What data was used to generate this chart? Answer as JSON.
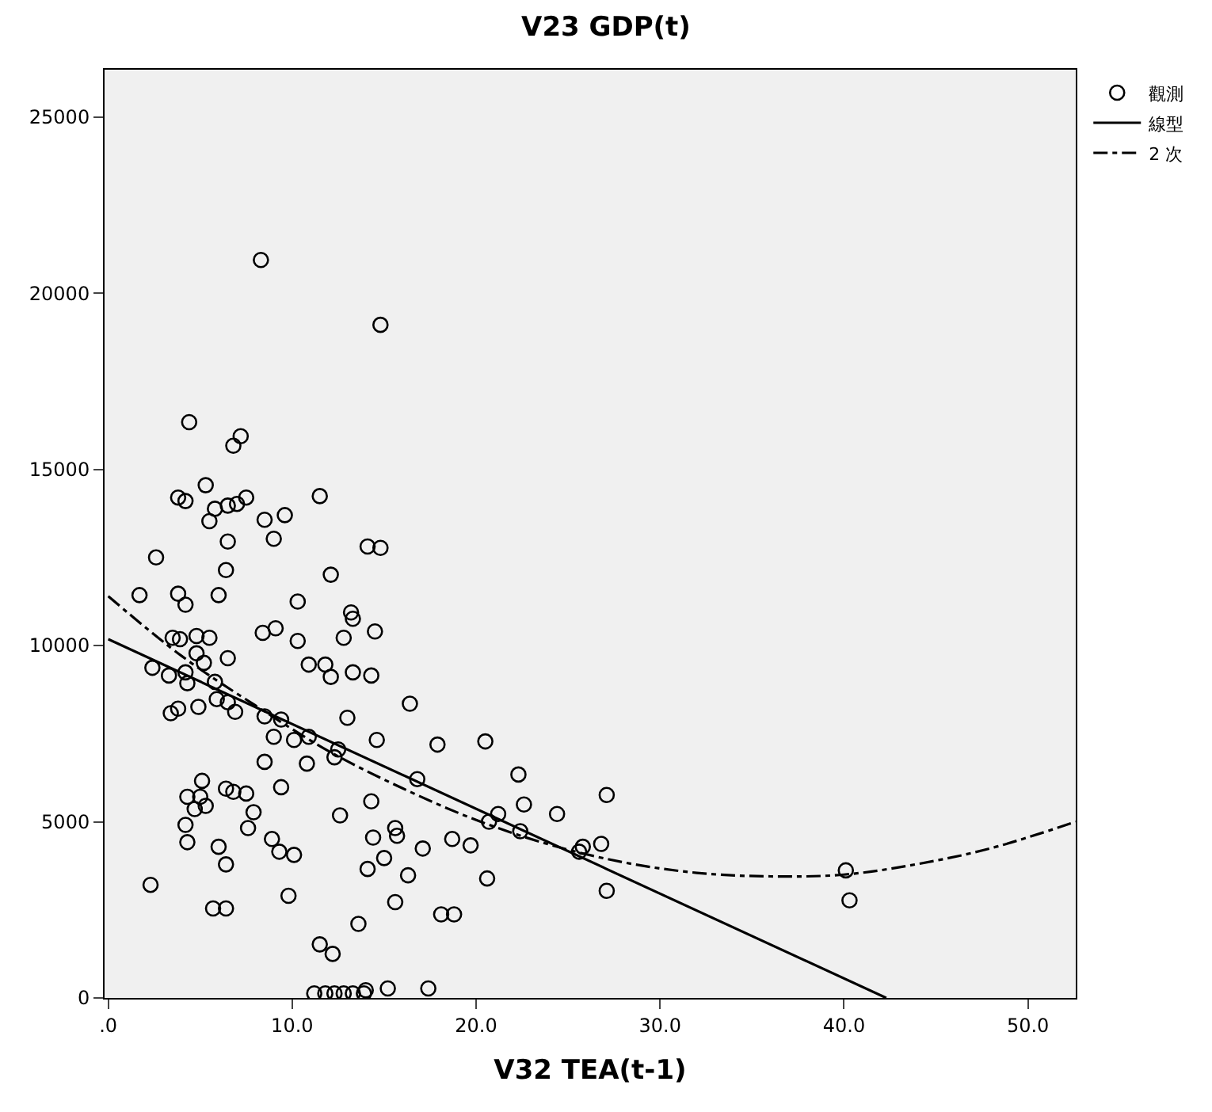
{
  "chart_data": {
    "type": "scatter",
    "title": "V23 GDP(t)",
    "xlabel": "V32 TEA(t-1)",
    "xlim": [
      -0.2,
      52.6
    ],
    "ylim": [
      0,
      26340
    ],
    "xticks": [
      {
        "value": 0,
        "label": ".0"
      },
      {
        "value": 10,
        "label": "10.0"
      },
      {
        "value": 20,
        "label": "20.0"
      },
      {
        "value": 30,
        "label": "30.0"
      },
      {
        "value": 40,
        "label": "40.0"
      },
      {
        "value": 50,
        "label": "50.0"
      }
    ],
    "yticks": [
      0,
      5000,
      10000,
      15000,
      20000,
      25000
    ],
    "grid": false,
    "legend": "top right",
    "series": [
      {
        "name": "觀測",
        "marker": "circle",
        "color": "#000000",
        "x": [
          8.3,
          14.8,
          4.4,
          7.2,
          6.8,
          3.8,
          4.2,
          5.3,
          5.8,
          5.5,
          6.5,
          7.0,
          7.5,
          8.5,
          9.6,
          9.0,
          6.5,
          11.5,
          2.6,
          6.4,
          14.1,
          14.8,
          12.1,
          1.7,
          3.8,
          4.2,
          6.0,
          10.3,
          13.2,
          13.3,
          8.4,
          9.1,
          10.3,
          12.8,
          14.5,
          3.5,
          3.9,
          4.8,
          5.5,
          4.8,
          5.2,
          6.5,
          2.4,
          3.3,
          4.2,
          4.3,
          5.8,
          10.9,
          11.8,
          12.1,
          13.3,
          14.3,
          5.9,
          6.5,
          6.9,
          3.4,
          3.8,
          4.9,
          8.5,
          9.4,
          13.0,
          9.0,
          10.1,
          10.9,
          12.5,
          12.3,
          14.6,
          8.5,
          10.8,
          5.1,
          4.3,
          5.0,
          4.7,
          5.3,
          6.4,
          6.8,
          7.5,
          9.4,
          7.9,
          7.6,
          4.2,
          4.3,
          6.0,
          6.4,
          8.9,
          9.3,
          10.1,
          12.6,
          14.3,
          14.4,
          14.1,
          2.3,
          9.8,
          5.7,
          6.4,
          13.6,
          11.5,
          12.2,
          11.2,
          11.8,
          12.3,
          12.8,
          13.3,
          13.9,
          14.0,
          16.4,
          17.9,
          20.5,
          16.8,
          22.3,
          22.6,
          24.4,
          27.1,
          21.2,
          20.7,
          22.4,
          15.6,
          15.7,
          15.0,
          17.1,
          18.7,
          19.7,
          16.3,
          20.6,
          25.6,
          25.8,
          26.8,
          27.1,
          15.6,
          18.1,
          18.8,
          15.2,
          17.4,
          40.1,
          40.3
        ],
        "values": [
          20940,
          19100,
          16340,
          15940,
          15670,
          14200,
          14100,
          14550,
          13880,
          13530,
          13970,
          14020,
          14200,
          13570,
          13700,
          13030,
          12950,
          14240,
          12500,
          12140,
          12810,
          12770,
          12010,
          11430,
          11470,
          11160,
          11430,
          11250,
          10940,
          10760,
          10360,
          10490,
          10130,
          10220,
          10400,
          10220,
          10180,
          10270,
          10220,
          9780,
          9510,
          9640,
          9370,
          9150,
          9240,
          8930,
          8970,
          9460,
          9460,
          9110,
          9240,
          9150,
          8480,
          8390,
          8120,
          8080,
          8210,
          8260,
          7990,
          7900,
          7950,
          7410,
          7320,
          7410,
          7050,
          6830,
          7320,
          6700,
          6650,
          6160,
          5710,
          5710,
          5360,
          5450,
          5940,
          5850,
          5800,
          5980,
          5270,
          4820,
          4910,
          4420,
          4290,
          3790,
          4510,
          4150,
          4060,
          5180,
          5580,
          4550,
          3660,
          3210,
          2900,
          2540,
          2540,
          2100,
          1520,
          1250,
          130,
          130,
          130,
          130,
          130,
          130,
          220,
          8350,
          7190,
          7280,
          6210,
          6340,
          5490,
          5220,
          5760,
          5220,
          5000,
          4730,
          4820,
          4600,
          3970,
          4240,
          4510,
          4330,
          3480,
          3390,
          4150,
          4290,
          4370,
          3040,
          2720,
          2370,
          2370,
          270,
          270,
          3620,
          2770
        ]
      },
      {
        "name": "線型",
        "type": "line",
        "line_style": "solid",
        "color": "#000000",
        "x": [
          0,
          42.3
        ],
        "values": [
          10180,
          0
        ]
      },
      {
        "name": "2 次",
        "type": "line",
        "line_style": "dashdot",
        "color": "#000000",
        "x": [
          0,
          4,
          8,
          12,
          16,
          20,
          24,
          28,
          32,
          36,
          40,
          44,
          48,
          52.6
        ],
        "values": [
          11400,
          9700,
          8300,
          7000,
          5950,
          5050,
          4350,
          3850,
          3550,
          3450,
          3500,
          3800,
          4250,
          5000
        ]
      }
    ]
  }
}
